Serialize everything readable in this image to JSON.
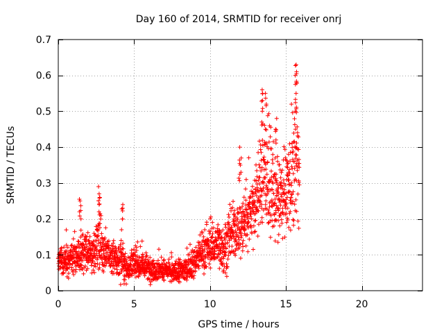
{
  "chart_data": {
    "type": "scatter",
    "title": "Day 160 of 2014, SRMTID for receiver onrj",
    "xlabel": "GPS time / hours",
    "ylabel": "SRMTID / TECUs",
    "xlim": [
      0,
      24
    ],
    "ylim": [
      0,
      0.7
    ],
    "xticks": [
      0,
      5,
      10,
      15,
      20
    ],
    "xtick_labels": [
      "0",
      "5",
      "10",
      "15",
      "20"
    ],
    "yticks": [
      0,
      0.1,
      0.2,
      0.3,
      0.4,
      0.5,
      0.6,
      0.7
    ],
    "ytick_labels": [
      "0",
      "0.1",
      "0.2",
      "0.3",
      "0.4",
      "0.5",
      "0.6",
      "0.7"
    ],
    "grid": true,
    "marker": "+",
    "color": "#ff0000",
    "series": [
      {
        "name": "SRMTID",
        "profile": [
          {
            "x": 0.0,
            "y": 0.08,
            "s": 0.025
          },
          {
            "x": 0.5,
            "y": 0.08,
            "s": 0.025
          },
          {
            "x": 1.0,
            "y": 0.085,
            "s": 0.03
          },
          {
            "x": 1.5,
            "y": 0.11,
            "s": 0.035
          },
          {
            "x": 2.0,
            "y": 0.1,
            "s": 0.03
          },
          {
            "x": 2.5,
            "y": 0.12,
            "s": 0.035
          },
          {
            "x": 2.8,
            "y": 0.13,
            "s": 0.045
          },
          {
            "x": 3.0,
            "y": 0.11,
            "s": 0.03
          },
          {
            "x": 3.5,
            "y": 0.09,
            "s": 0.03
          },
          {
            "x": 4.0,
            "y": 0.08,
            "s": 0.03
          },
          {
            "x": 4.2,
            "y": 0.09,
            "s": 0.035
          },
          {
            "x": 4.5,
            "y": 0.06,
            "s": 0.02
          },
          {
            "x": 5.0,
            "y": 0.075,
            "s": 0.025
          },
          {
            "x": 5.5,
            "y": 0.07,
            "s": 0.02
          },
          {
            "x": 6.0,
            "y": 0.06,
            "s": 0.02
          },
          {
            "x": 6.5,
            "y": 0.06,
            "s": 0.02
          },
          {
            "x": 7.0,
            "y": 0.055,
            "s": 0.018
          },
          {
            "x": 7.5,
            "y": 0.05,
            "s": 0.018
          },
          {
            "x": 8.0,
            "y": 0.055,
            "s": 0.02
          },
          {
            "x": 8.5,
            "y": 0.06,
            "s": 0.02
          },
          {
            "x": 9.0,
            "y": 0.08,
            "s": 0.025
          },
          {
            "x": 9.5,
            "y": 0.11,
            "s": 0.03
          },
          {
            "x": 10.0,
            "y": 0.12,
            "s": 0.035
          },
          {
            "x": 10.5,
            "y": 0.13,
            "s": 0.04
          },
          {
            "x": 11.0,
            "y": 0.12,
            "s": 0.04
          },
          {
            "x": 11.5,
            "y": 0.16,
            "s": 0.045
          },
          {
            "x": 12.0,
            "y": 0.17,
            "s": 0.05
          },
          {
            "x": 12.5,
            "y": 0.22,
            "s": 0.06
          },
          {
            "x": 13.0,
            "y": 0.24,
            "s": 0.06
          },
          {
            "x": 13.5,
            "y": 0.33,
            "s": 0.1
          },
          {
            "x": 14.0,
            "y": 0.28,
            "s": 0.08
          },
          {
            "x": 14.5,
            "y": 0.24,
            "s": 0.06
          },
          {
            "x": 15.0,
            "y": 0.27,
            "s": 0.07
          },
          {
            "x": 15.5,
            "y": 0.33,
            "s": 0.1
          },
          {
            "x": 15.8,
            "y": 0.35,
            "s": 0.12
          }
        ],
        "spikes": [
          {
            "x": 1.45,
            "y": [
              0.25,
              0.22,
              0.2,
              0.255
            ]
          },
          {
            "x": 2.7,
            "y": [
              0.29,
              0.27,
              0.26,
              0.24,
              0.22
            ]
          },
          {
            "x": 4.2,
            "y": [
              0.24,
              0.23,
              0.2,
              0.17
            ]
          },
          {
            "x": 12.0,
            "y": [
              0.4,
              0.37,
              0.35,
              0.33
            ]
          },
          {
            "x": 13.45,
            "y": [
              0.56,
              0.55,
              0.53,
              0.5,
              0.47
            ]
          },
          {
            "x": 13.7,
            "y": [
              0.55,
              0.52,
              0.45
            ]
          },
          {
            "x": 14.35,
            "y": [
              0.48,
              0.45,
              0.42
            ]
          },
          {
            "x": 15.65,
            "y": [
              0.63,
              0.61,
              0.6,
              0.58,
              0.55,
              0.5,
              0.45
            ]
          }
        ],
        "n_points": 1900,
        "x_end": 15.9
      }
    ]
  }
}
